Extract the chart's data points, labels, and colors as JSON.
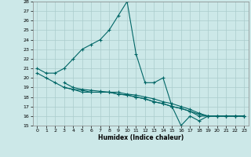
{
  "xlabel": "Humidex (Indice chaleur)",
  "xlim": [
    -0.5,
    23.5
  ],
  "ylim": [
    15,
    28
  ],
  "yticks": [
    15,
    16,
    17,
    18,
    19,
    20,
    21,
    22,
    23,
    24,
    25,
    26,
    27,
    28
  ],
  "xticks": [
    0,
    1,
    2,
    3,
    4,
    5,
    6,
    7,
    8,
    9,
    10,
    11,
    12,
    13,
    14,
    15,
    16,
    17,
    18,
    19,
    20,
    21,
    22,
    23
  ],
  "line_color": "#006666",
  "bg_color": "#cce8e8",
  "grid_color": "#aacccc",
  "lines": [
    {
      "x": [
        0,
        1,
        2,
        3,
        4,
        5,
        6,
        7,
        8,
        9,
        10,
        11,
        12,
        13,
        14,
        15,
        16,
        17,
        18,
        19,
        20,
        21,
        22,
        23
      ],
      "y": [
        21.0,
        20.5,
        20.5,
        21.0,
        22.0,
        23.0,
        23.5,
        24.0,
        25.0,
        26.5,
        28.0,
        22.5,
        19.5,
        19.5,
        20.0,
        17.0,
        15.0,
        16.0,
        15.5,
        16.0,
        16.0,
        16.0,
        16.0,
        16.0
      ]
    },
    {
      "x": [
        0,
        1,
        2,
        3,
        4,
        5,
        6,
        7,
        8,
        9,
        10,
        11,
        12,
        13,
        14,
        15,
        16,
        17,
        18,
        19,
        20,
        21,
        22,
        23
      ],
      "y": [
        20.5,
        20.0,
        19.5,
        19.0,
        18.8,
        18.7,
        18.5,
        18.5,
        18.5,
        18.3,
        18.2,
        18.0,
        17.8,
        17.5,
        17.3,
        17.0,
        16.8,
        16.5,
        16.2,
        16.0,
        16.0,
        16.0,
        16.0,
        16.0
      ]
    },
    {
      "x": [
        3,
        4,
        5,
        6,
        7,
        8,
        9,
        10,
        11,
        12,
        13,
        14,
        15,
        16,
        17,
        18,
        19,
        20,
        21,
        22,
        23
      ],
      "y": [
        19.5,
        19.0,
        18.8,
        18.7,
        18.6,
        18.5,
        18.5,
        18.3,
        18.2,
        18.0,
        17.8,
        17.5,
        17.3,
        17.0,
        16.7,
        16.3,
        16.0,
        16.0,
        16.0,
        16.0,
        16.0
      ]
    },
    {
      "x": [
        3,
        4,
        5,
        6,
        7,
        8,
        9,
        10,
        11,
        12,
        13,
        14,
        15,
        16,
        17,
        18,
        19,
        20,
        21,
        22,
        23
      ],
      "y": [
        19.0,
        18.8,
        18.5,
        18.5,
        18.5,
        18.5,
        18.3,
        18.2,
        18.0,
        17.8,
        17.5,
        17.3,
        17.0,
        16.8,
        16.5,
        16.0,
        16.0,
        16.0,
        16.0,
        16.0,
        16.0
      ]
    }
  ]
}
